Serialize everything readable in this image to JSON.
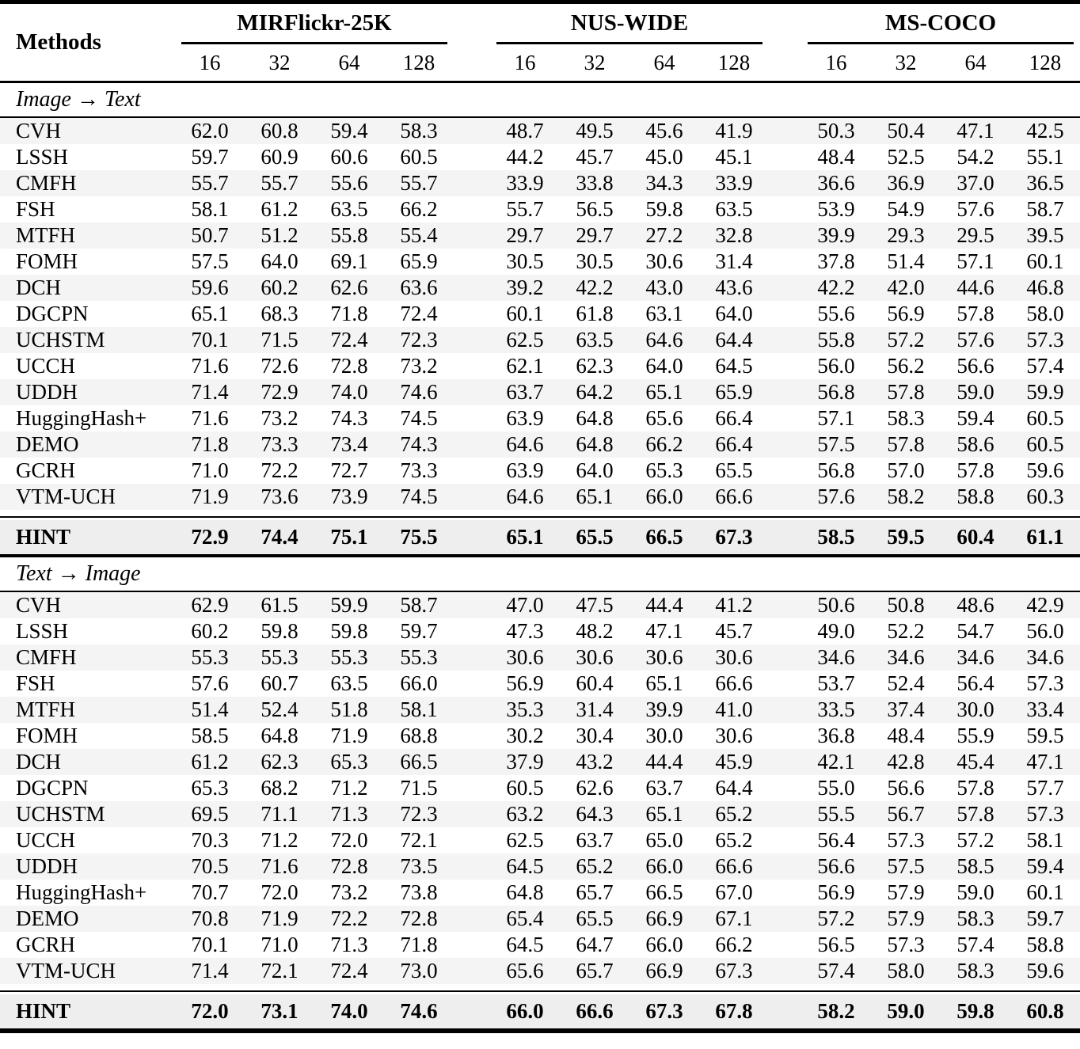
{
  "table": {
    "col_header": "Methods",
    "groups": [
      {
        "name": "MIRFlickr-25K",
        "bits": [
          "16",
          "32",
          "64",
          "128"
        ]
      },
      {
        "name": "NUS-WIDE",
        "bits": [
          "16",
          "32",
          "64",
          "128"
        ]
      },
      {
        "name": "MS-COCO",
        "bits": [
          "16",
          "32",
          "64",
          "128"
        ]
      }
    ],
    "sections": [
      {
        "label": "Image → Text",
        "rows": [
          {
            "method": "CVH",
            "values": [
              "62.0",
              "60.8",
              "59.4",
              "58.3",
              "48.7",
              "49.5",
              "45.6",
              "41.9",
              "50.3",
              "50.4",
              "47.1",
              "42.5"
            ]
          },
          {
            "method": "LSSH",
            "values": [
              "59.7",
              "60.9",
              "60.6",
              "60.5",
              "44.2",
              "45.7",
              "45.0",
              "45.1",
              "48.4",
              "52.5",
              "54.2",
              "55.1"
            ]
          },
          {
            "method": "CMFH",
            "values": [
              "55.7",
              "55.7",
              "55.6",
              "55.7",
              "33.9",
              "33.8",
              "34.3",
              "33.9",
              "36.6",
              "36.9",
              "37.0",
              "36.5"
            ]
          },
          {
            "method": "FSH",
            "values": [
              "58.1",
              "61.2",
              "63.5",
              "66.2",
              "55.7",
              "56.5",
              "59.8",
              "63.5",
              "53.9",
              "54.9",
              "57.6",
              "58.7"
            ]
          },
          {
            "method": "MTFH",
            "values": [
              "50.7",
              "51.2",
              "55.8",
              "55.4",
              "29.7",
              "29.7",
              "27.2",
              "32.8",
              "39.9",
              "29.3",
              "29.5",
              "39.5"
            ]
          },
          {
            "method": "FOMH",
            "values": [
              "57.5",
              "64.0",
              "69.1",
              "65.9",
              "30.5",
              "30.5",
              "30.6",
              "31.4",
              "37.8",
              "51.4",
              "57.1",
              "60.1"
            ]
          },
          {
            "method": "DCH",
            "values": [
              "59.6",
              "60.2",
              "62.6",
              "63.6",
              "39.2",
              "42.2",
              "43.0",
              "43.6",
              "42.2",
              "42.0",
              "44.6",
              "46.8"
            ]
          },
          {
            "method": "DGCPN",
            "values": [
              "65.1",
              "68.3",
              "71.8",
              "72.4",
              "60.1",
              "61.8",
              "63.1",
              "64.0",
              "55.6",
              "56.9",
              "57.8",
              "58.0"
            ]
          },
          {
            "method": "UCHSTM",
            "values": [
              "70.1",
              "71.5",
              "72.4",
              "72.3",
              "62.5",
              "63.5",
              "64.6",
              "64.4",
              "55.8",
              "57.2",
              "57.6",
              "57.3"
            ]
          },
          {
            "method": "UCCH",
            "values": [
              "71.6",
              "72.6",
              "72.8",
              "73.2",
              "62.1",
              "62.3",
              "64.0",
              "64.5",
              "56.0",
              "56.2",
              "56.6",
              "57.4"
            ]
          },
          {
            "method": "UDDH",
            "values": [
              "71.4",
              "72.9",
              "74.0",
              "74.6",
              "63.7",
              "64.2",
              "65.1",
              "65.9",
              "56.8",
              "57.8",
              "59.0",
              "59.9"
            ]
          },
          {
            "method": "HuggingHash+",
            "values": [
              "71.6",
              "73.2",
              "74.3",
              "74.5",
              "63.9",
              "64.8",
              "65.6",
              "66.4",
              "57.1",
              "58.3",
              "59.4",
              "60.5"
            ]
          },
          {
            "method": "DEMO",
            "values": [
              "71.8",
              "73.3",
              "73.4",
              "74.3",
              "64.6",
              "64.8",
              "66.2",
              "66.4",
              "57.5",
              "57.8",
              "58.6",
              "60.5"
            ]
          },
          {
            "method": "GCRH",
            "values": [
              "71.0",
              "72.2",
              "72.7",
              "73.3",
              "63.9",
              "64.0",
              "65.3",
              "65.5",
              "56.8",
              "57.0",
              "57.8",
              "59.6"
            ]
          },
          {
            "method": "VTM-UCH",
            "values": [
              "71.9",
              "73.6",
              "73.9",
              "74.5",
              "64.6",
              "65.1",
              "66.0",
              "66.6",
              "57.6",
              "58.2",
              "58.8",
              "60.3"
            ]
          }
        ],
        "highlight": {
          "method": "HINT",
          "values": [
            "72.9",
            "74.4",
            "75.1",
            "75.5",
            "65.1",
            "65.5",
            "66.5",
            "67.3",
            "58.5",
            "59.5",
            "60.4",
            "61.1"
          ]
        }
      },
      {
        "label": "Text → Image",
        "rows": [
          {
            "method": "CVH",
            "values": [
              "62.9",
              "61.5",
              "59.9",
              "58.7",
              "47.0",
              "47.5",
              "44.4",
              "41.2",
              "50.6",
              "50.8",
              "48.6",
              "42.9"
            ]
          },
          {
            "method": "LSSH",
            "values": [
              "60.2",
              "59.8",
              "59.8",
              "59.7",
              "47.3",
              "48.2",
              "47.1",
              "45.7",
              "49.0",
              "52.2",
              "54.7",
              "56.0"
            ]
          },
          {
            "method": "CMFH",
            "values": [
              "55.3",
              "55.3",
              "55.3",
              "55.3",
              "30.6",
              "30.6",
              "30.6",
              "30.6",
              "34.6",
              "34.6",
              "34.6",
              "34.6"
            ]
          },
          {
            "method": "FSH",
            "values": [
              "57.6",
              "60.7",
              "63.5",
              "66.0",
              "56.9",
              "60.4",
              "65.1",
              "66.6",
              "53.7",
              "52.4",
              "56.4",
              "57.3"
            ]
          },
          {
            "method": "MTFH",
            "values": [
              "51.4",
              "52.4",
              "51.8",
              "58.1",
              "35.3",
              "31.4",
              "39.9",
              "41.0",
              "33.5",
              "37.4",
              "30.0",
              "33.4"
            ]
          },
          {
            "method": "FOMH",
            "values": [
              "58.5",
              "64.8",
              "71.9",
              "68.8",
              "30.2",
              "30.4",
              "30.0",
              "30.6",
              "36.8",
              "48.4",
              "55.9",
              "59.5"
            ]
          },
          {
            "method": "DCH",
            "values": [
              "61.2",
              "62.3",
              "65.3",
              "66.5",
              "37.9",
              "43.2",
              "44.4",
              "45.9",
              "42.1",
              "42.8",
              "45.4",
              "47.1"
            ]
          },
          {
            "method": "DGCPN",
            "values": [
              "65.3",
              "68.2",
              "71.2",
              "71.5",
              "60.5",
              "62.6",
              "63.7",
              "64.4",
              "55.0",
              "56.6",
              "57.8",
              "57.7"
            ]
          },
          {
            "method": "UCHSTM",
            "values": [
              "69.5",
              "71.1",
              "71.3",
              "72.3",
              "63.2",
              "64.3",
              "65.1",
              "65.2",
              "55.5",
              "56.7",
              "57.8",
              "57.3"
            ]
          },
          {
            "method": "UCCH",
            "values": [
              "70.3",
              "71.2",
              "72.0",
              "72.1",
              "62.5",
              "63.7",
              "65.0",
              "65.2",
              "56.4",
              "57.3",
              "57.2",
              "58.1"
            ]
          },
          {
            "method": "UDDH",
            "values": [
              "70.5",
              "71.6",
              "72.8",
              "73.5",
              "64.5",
              "65.2",
              "66.0",
              "66.6",
              "56.6",
              "57.5",
              "58.5",
              "59.4"
            ]
          },
          {
            "method": "HuggingHash+",
            "values": [
              "70.7",
              "72.0",
              "73.2",
              "73.8",
              "64.8",
              "65.7",
              "66.5",
              "67.0",
              "56.9",
              "57.9",
              "59.0",
              "60.1"
            ]
          },
          {
            "method": "DEMO",
            "values": [
              "70.8",
              "71.9",
              "72.2",
              "72.8",
              "65.4",
              "65.5",
              "66.9",
              "67.1",
              "57.2",
              "57.9",
              "58.3",
              "59.7"
            ]
          },
          {
            "method": "GCRH",
            "values": [
              "70.1",
              "71.0",
              "71.3",
              "71.8",
              "64.5",
              "64.7",
              "66.0",
              "66.2",
              "56.5",
              "57.3",
              "57.4",
              "58.8"
            ]
          },
          {
            "method": "VTM-UCH",
            "values": [
              "71.4",
              "72.1",
              "72.4",
              "73.0",
              "65.6",
              "65.7",
              "66.9",
              "67.3",
              "57.4",
              "58.0",
              "58.3",
              "59.6"
            ]
          }
        ],
        "highlight": {
          "method": "HINT",
          "values": [
            "72.0",
            "73.1",
            "74.0",
            "74.6",
            "66.0",
            "66.6",
            "67.3",
            "67.8",
            "58.2",
            "59.0",
            "59.8",
            "60.8"
          ]
        }
      }
    ],
    "colors": {
      "stripe": "#f4f4f4",
      "highlight_bg": "#eeeeee",
      "rule": "#000000"
    }
  }
}
